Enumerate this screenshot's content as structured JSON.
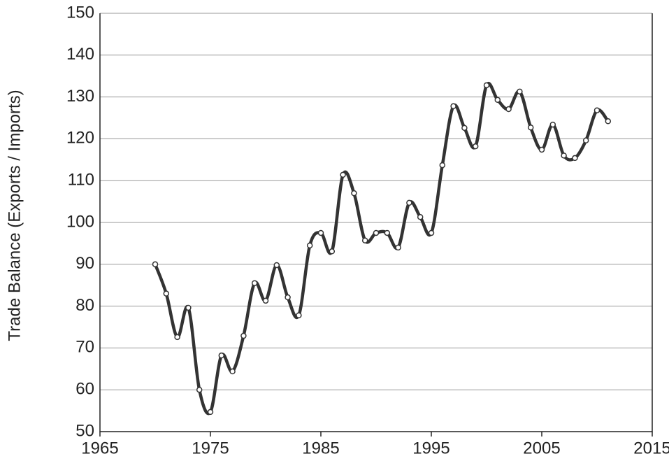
{
  "chart_data": {
    "type": "line",
    "y_label": "Trade Balance (Exports / Imports)",
    "x": [
      1970,
      1971,
      1972,
      1973,
      1974,
      1975,
      1976,
      1977,
      1978,
      1979,
      1980,
      1981,
      1982,
      1983,
      1984,
      1985,
      1986,
      1987,
      1988,
      1989,
      1990,
      1991,
      1992,
      1993,
      1994,
      1995,
      1996,
      1997,
      1998,
      1999,
      2000,
      2001,
      2002,
      2003,
      2004,
      2005,
      2006,
      2007,
      2008,
      2009,
      2010,
      2011
    ],
    "series": [
      {
        "color": "#333333",
        "values": [
          90,
          83,
          72.6,
          79.6,
          60,
          54.7,
          68.2,
          64.4,
          72.9,
          85.5,
          81.3,
          89.8,
          82.1,
          77.8,
          94.5,
          97.5,
          93.1,
          111.4,
          107,
          95.7,
          97.5,
          97.5,
          94,
          104.7,
          101.3,
          97.5,
          113.7,
          127.8,
          122.6,
          118.2,
          132.8,
          129.3,
          127.1,
          131.3,
          122.7,
          117.4,
          123.4,
          116,
          115.4,
          119.6,
          126.8,
          124.2
        ]
      }
    ],
    "xlim": [
      1965,
      2015
    ],
    "xticks": [
      1965,
      1975,
      1985,
      1995,
      2005,
      2015
    ],
    "ylim": [
      50,
      150
    ],
    "yticks": [
      50,
      60,
      70,
      80,
      90,
      100,
      110,
      120,
      130,
      140,
      150
    ],
    "grid": true
  }
}
